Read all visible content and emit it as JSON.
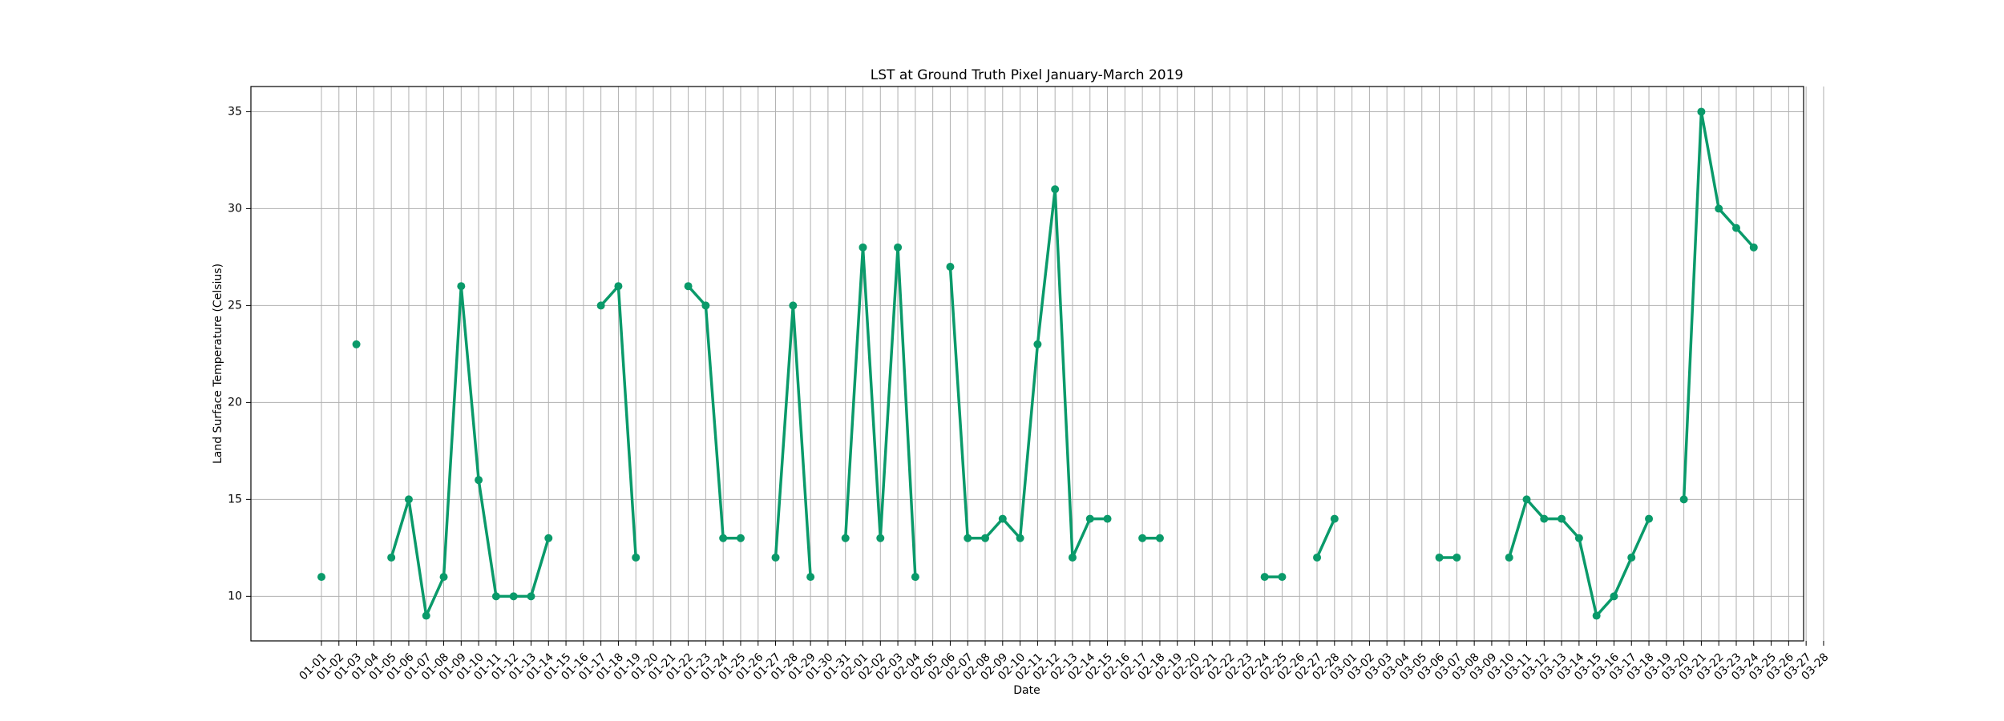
{
  "chart_data": {
    "type": "line",
    "title": "LST at Ground Truth Pixel January-March 2019",
    "xlabel": "Date",
    "ylabel": "Land Surface Temperature (Celsius)",
    "ylim": [
      7.7,
      36.3
    ],
    "yticks": [
      10,
      15,
      20,
      25,
      30,
      35
    ],
    "grid": true,
    "color": "#0a9a6a",
    "x": [
      "01-01",
      "01-02",
      "01-03",
      "01-04",
      "01-05",
      "01-06",
      "01-07",
      "01-08",
      "01-09",
      "01-10",
      "01-11",
      "01-12",
      "01-13",
      "01-14",
      "01-15",
      "01-16",
      "01-17",
      "01-18",
      "01-19",
      "01-20",
      "01-21",
      "01-22",
      "01-23",
      "01-24",
      "01-25",
      "01-26",
      "01-27",
      "01-28",
      "01-29",
      "01-30",
      "01-31",
      "02-01",
      "02-02",
      "02-03",
      "02-04",
      "02-05",
      "02-06",
      "02-07",
      "02-08",
      "02-09",
      "02-10",
      "02-11",
      "02-12",
      "02-13",
      "02-14",
      "02-15",
      "02-16",
      "02-17",
      "02-18",
      "02-19",
      "02-20",
      "02-21",
      "02-22",
      "02-23",
      "02-24",
      "02-25",
      "02-26",
      "02-27",
      "02-28",
      "03-01",
      "03-02",
      "03-03",
      "03-04",
      "03-05",
      "03-06",
      "03-07",
      "03-08",
      "03-09",
      "03-10",
      "03-11",
      "03-12",
      "03-13",
      "03-14",
      "03-15",
      "03-16",
      "03-17",
      "03-18",
      "03-19",
      "03-20",
      "03-21",
      "03-22",
      "03-23",
      "03-24",
      "03-25",
      "03-26",
      "03-27",
      "03-28"
    ],
    "values": [
      11,
      null,
      23,
      null,
      12,
      15,
      9,
      11,
      26,
      16,
      10,
      10,
      10,
      13,
      null,
      null,
      25,
      26,
      12,
      null,
      null,
      26,
      25,
      13,
      13,
      null,
      12,
      25,
      11,
      null,
      13,
      28,
      13,
      28,
      11,
      null,
      27,
      13,
      13,
      14,
      13,
      23,
      31,
      12,
      14,
      14,
      null,
      13,
      13,
      null,
      null,
      null,
      null,
      null,
      11,
      11,
      null,
      12,
      14,
      null,
      null,
      null,
      null,
      null,
      12,
      12,
      null,
      null,
      12,
      15,
      14,
      14,
      13,
      9,
      10,
      12,
      14,
      null,
      15,
      35,
      30,
      29,
      28,
      null,
      null,
      null,
      null
    ]
  }
}
